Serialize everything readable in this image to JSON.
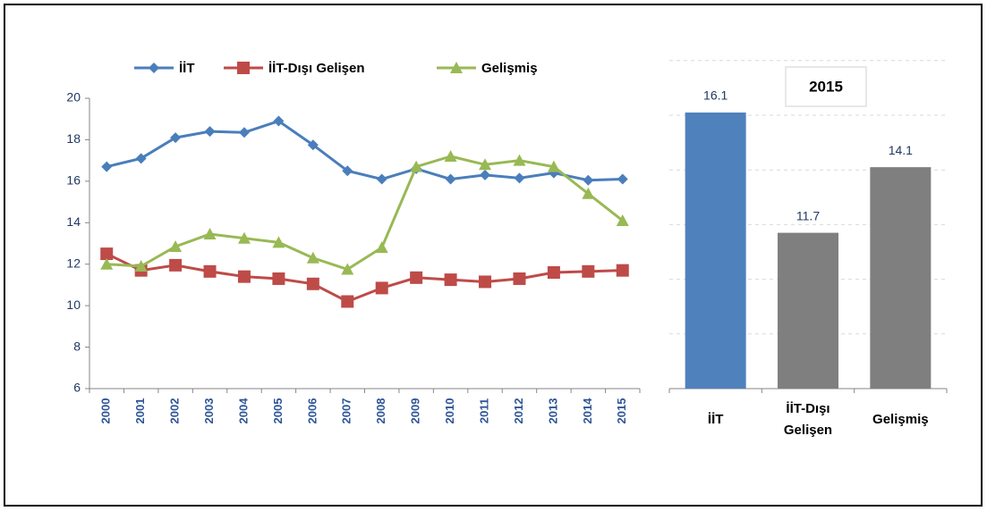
{
  "chart_data": [
    {
      "type": "line",
      "categories": [
        "2000",
        "2001",
        "2002",
        "2003",
        "2004",
        "2005",
        "2006",
        "2007",
        "2008",
        "2009",
        "2010",
        "2011",
        "2012",
        "2013",
        "2014",
        "2015"
      ],
      "series": [
        {
          "name": "İİT",
          "color": "#4a7ebb",
          "marker": "diamond",
          "values": [
            16.7,
            17.1,
            18.1,
            18.4,
            18.35,
            18.9,
            17.75,
            16.5,
            16.1,
            16.6,
            16.1,
            16.3,
            16.15,
            16.4,
            16.05,
            16.1
          ]
        },
        {
          "name": "İİT-Dışı Gelişen",
          "color": "#be4b48",
          "marker": "square",
          "values": [
            12.5,
            11.7,
            11.95,
            11.65,
            11.4,
            11.3,
            11.05,
            10.2,
            10.85,
            11.35,
            11.25,
            11.15,
            11.3,
            11.6,
            11.65,
            11.7
          ]
        },
        {
          "name": "Gelişmiş",
          "color": "#98b954",
          "marker": "triangle",
          "values": [
            12.0,
            11.9,
            12.85,
            13.45,
            13.25,
            13.05,
            12.3,
            11.75,
            12.8,
            16.7,
            17.2,
            16.8,
            17.0,
            16.7,
            15.4,
            14.1
          ]
        }
      ],
      "ylim": [
        6,
        20
      ],
      "yticks": [
        6,
        8,
        10,
        12,
        14,
        16,
        18,
        20
      ],
      "legend": "top"
    },
    {
      "type": "bar",
      "title": "2015",
      "categories": [
        "İİT",
        "İİT-Dışı Gelişen",
        "Gelişmiş"
      ],
      "values": [
        16.1,
        11.7,
        14.1
      ],
      "colors": [
        "#4f81bd",
        "#7f7f7f",
        "#7f7f7f"
      ],
      "ylim": [
        6,
        18
      ],
      "yticks": [
        6,
        8,
        10,
        12,
        14,
        16,
        18
      ],
      "grid": true
    }
  ]
}
